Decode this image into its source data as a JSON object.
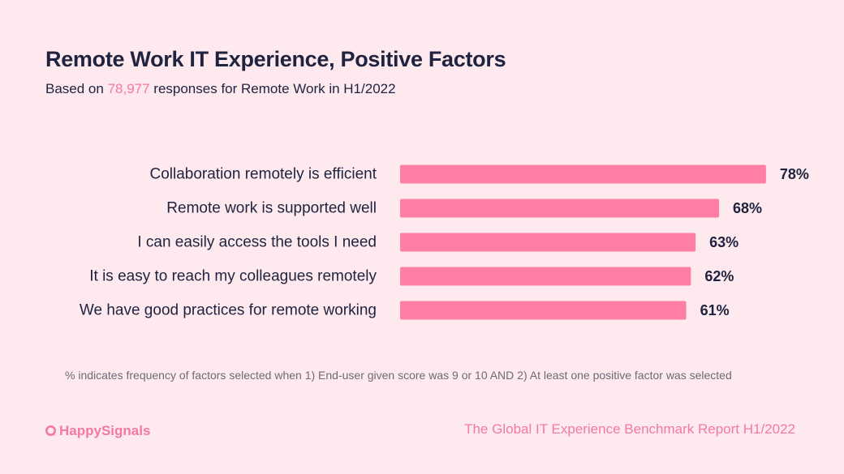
{
  "header": {
    "title": "Remote Work IT Experience, Positive Factors",
    "subtitle_prefix": "Based on ",
    "subtitle_highlight": "78,977",
    "subtitle_suffix": " responses for Remote Work in H1/2022"
  },
  "footnote": "% indicates frequency of factors selected when 1) End-user given score was 9 or 10 AND 2) At least one positive factor was selected",
  "footer": {
    "brand": "HappySignals",
    "report": "The Global IT Experience Benchmark Report H1/2022"
  },
  "colors": {
    "background": "#fde9ee",
    "bar": "#fe7ea6",
    "accent": "#f27aa3",
    "text": "#1f2340"
  },
  "chart_data": {
    "type": "bar",
    "orientation": "horizontal",
    "categories": [
      "Collaboration remotely is efficient",
      "Remote work is supported well",
      "I can easily access the tools I need",
      "It is easy to reach my colleagues remotely",
      "We have good practices for remote working"
    ],
    "values": [
      78,
      68,
      63,
      62,
      61
    ],
    "data_labels": [
      "78%",
      "68%",
      "63%",
      "62%",
      "61%"
    ],
    "unit": "%",
    "xlim": [
      0,
      100
    ],
    "grid": false
  }
}
